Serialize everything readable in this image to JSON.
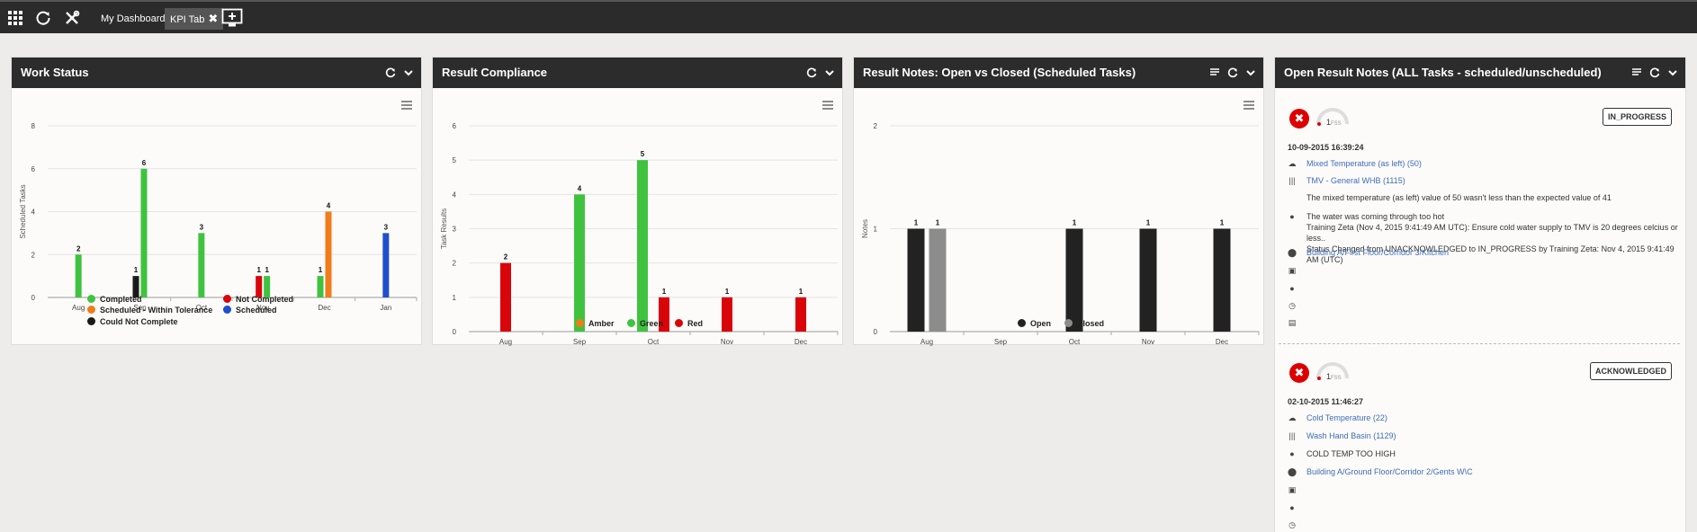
{
  "topbar": {
    "tabs": [
      {
        "label": "My Dashboard"
      },
      {
        "label": "KPI Tab"
      }
    ]
  },
  "panels": {
    "work_status": {
      "title": "Work Status"
    },
    "result_compliance": {
      "title": "Result Compliance"
    },
    "result_notes": {
      "title": "Result Notes: Open vs Closed (Scheduled Tasks)"
    },
    "open_notes": {
      "title": "Open Result Notes (ALL Tasks - scheduled/unscheduled)"
    }
  },
  "chart_data": [
    {
      "type": "bar",
      "ylabel": "Scheduled Tasks",
      "ylim": [
        0,
        8
      ],
      "yticks": [
        0,
        2,
        4,
        6,
        8
      ],
      "categories": [
        "Aug",
        "Sep",
        "Oct",
        "Nov",
        "Dec",
        "Jan"
      ],
      "legend_placement": "bottom",
      "grid": true,
      "series": [
        {
          "name": "Completed",
          "color": "#3fc33f",
          "values": [
            2,
            6,
            3,
            1,
            1,
            null
          ]
        },
        {
          "name": "Not Completed",
          "color": "#d9050a",
          "values": [
            null,
            null,
            null,
            1,
            null,
            null
          ]
        },
        {
          "name": "Scheduled - Within Tolerance",
          "color": "#f07c1a",
          "values": [
            null,
            null,
            null,
            null,
            4,
            null
          ]
        },
        {
          "name": "Scheduled",
          "color": "#1f4fcc",
          "values": [
            null,
            null,
            null,
            null,
            null,
            3
          ]
        },
        {
          "name": "Could Not Complete",
          "color": "#1a1a1a",
          "values": [
            null,
            1,
            null,
            null,
            null,
            null
          ]
        }
      ]
    },
    {
      "type": "bar",
      "ylabel": "Task Results",
      "ylim": [
        0,
        6
      ],
      "yticks": [
        0,
        1,
        2,
        3,
        4,
        5,
        6
      ],
      "categories": [
        "Aug",
        "Sep",
        "Oct",
        "Nov",
        "Dec"
      ],
      "legend_placement": "bottom",
      "grid": true,
      "series": [
        {
          "name": "Amber",
          "color": "#f07c1a",
          "values": [
            null,
            null,
            null,
            null,
            null
          ]
        },
        {
          "name": "Green",
          "color": "#3fc33f",
          "values": [
            null,
            4,
            5,
            null,
            null
          ]
        },
        {
          "name": "Red",
          "color": "#d9050a",
          "values": [
            2,
            null,
            1,
            1,
            1
          ]
        }
      ]
    },
    {
      "type": "bar",
      "ylabel": "Notes",
      "ylim": [
        0,
        2
      ],
      "yticks": [
        0,
        1,
        2
      ],
      "categories": [
        "Aug",
        "Sep",
        "Oct",
        "Nov",
        "Dec"
      ],
      "legend_placement": "bottom",
      "grid": true,
      "series": [
        {
          "name": "Open",
          "color": "#222222",
          "values": [
            1,
            null,
            1,
            1,
            1
          ]
        },
        {
          "name": "Closed",
          "color": "#8c8c8c",
          "values": [
            1,
            null,
            null,
            null,
            null
          ]
        }
      ]
    }
  ],
  "notes": [
    {
      "gauge_value": "1",
      "gauge_unit": "FSS",
      "status": "IN_PROGRESS",
      "date": "10-09-2015 16:39:24",
      "test": "Mixed Temperature (as left) (50)",
      "asset": "TMV - General WHB (1115)",
      "result_text": "The mixed temperature (as left) value of 50 wasn't less than the expected value of 41",
      "comment_lines": [
        "The water was coming through too hot",
        "Training Zeta (Nov 4, 2015 9:41:49 AM UTC): Ensure cold water supply to TMV is 20 degrees celcius or less..",
        "Status Changed from UNACKNOWLEDGED to IN_PROGRESS by Training Zeta: Nov 4, 2015 9:41:49 AM (UTC)"
      ],
      "location": "Building A/First Floor/Corridor 3/Kitchen"
    },
    {
      "gauge_value": "1",
      "gauge_unit": "FSS",
      "status": "ACKNOWLEDGED",
      "date": "02-10-2015 11:46:27",
      "test": "Cold Temperature (22)",
      "asset": "Wash Hand Basin (1129)",
      "comment": "COLD TEMP TOO HIGH",
      "location": "Building A/Ground Floor/Corridor 2/Gents W\\C"
    }
  ]
}
